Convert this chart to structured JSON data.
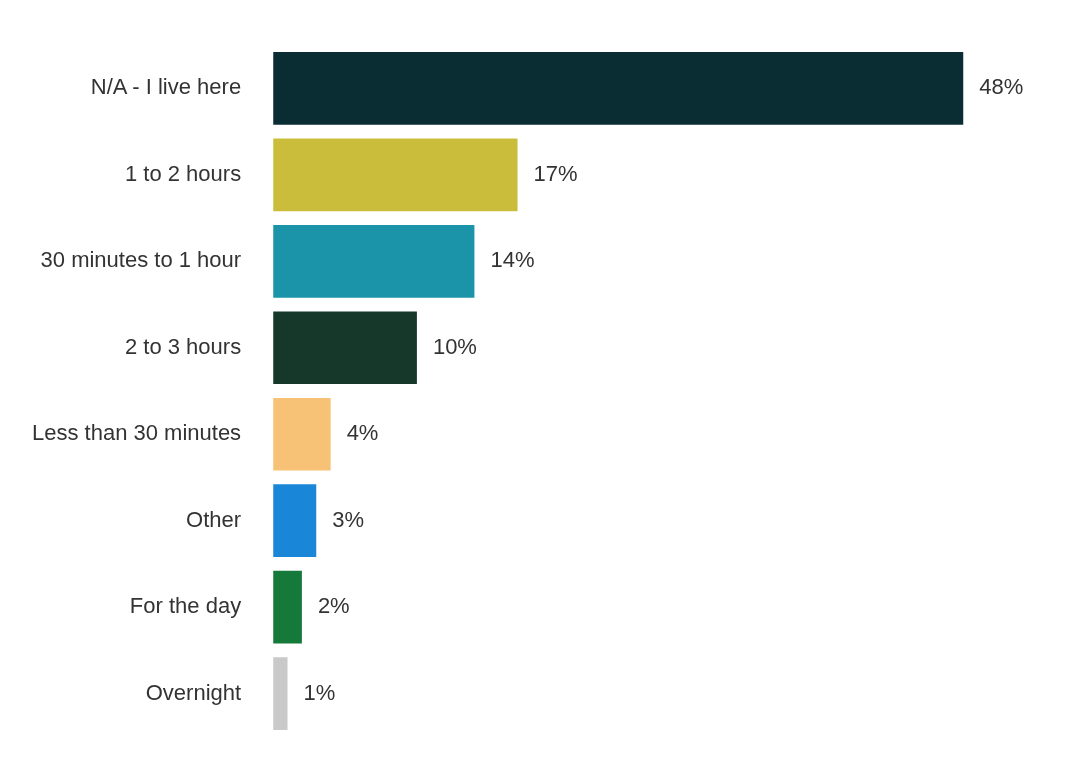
{
  "chart_data": {
    "type": "bar",
    "orientation": "horizontal",
    "categories": [
      "N/A - I live here",
      "1 to 2 hours",
      "30 minutes to 1 hour",
      "2 to 3 hours",
      "Less than 30 minutes",
      "Other",
      "For the day",
      "Overnight"
    ],
    "values": [
      48,
      17,
      14,
      10,
      4,
      3,
      2,
      1
    ],
    "colors": [
      "#0a2d33",
      "#cbbd3c",
      "#1b93a8",
      "#15382a",
      "#f7c275",
      "#1a86d8",
      "#15793a",
      "#c9c9c9"
    ],
    "value_labels": [
      "48%",
      "17%",
      "14%",
      "10%",
      "4%",
      "3%",
      "2%",
      "1%"
    ],
    "legend": false
  }
}
